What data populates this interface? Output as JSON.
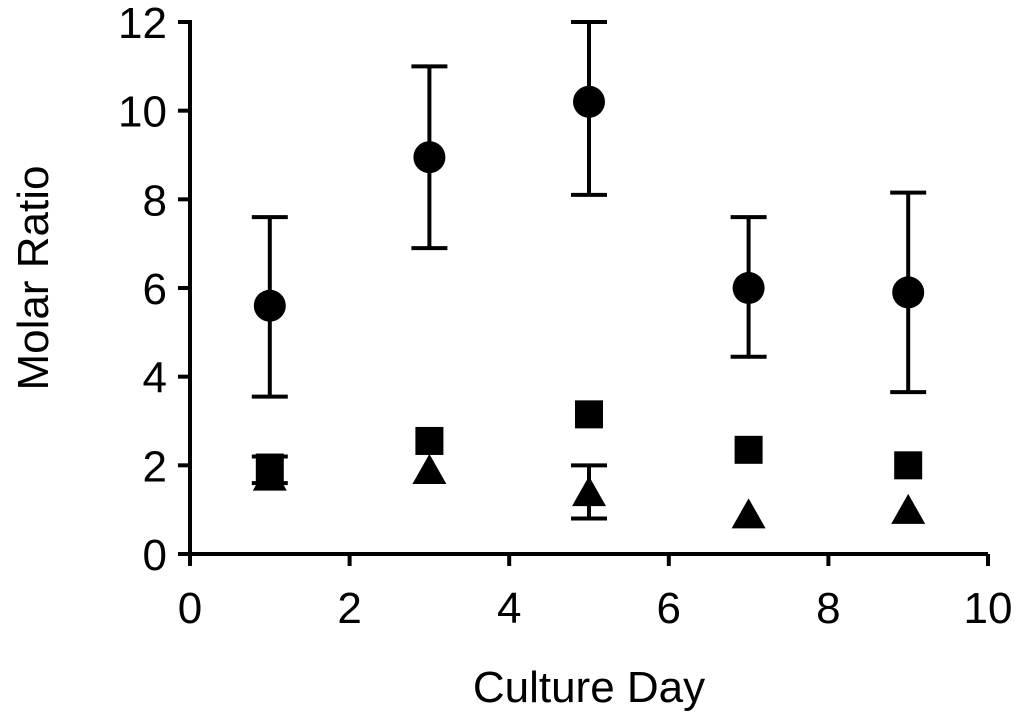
{
  "chart_data": {
    "type": "scatter",
    "title": "",
    "xlabel": "Culture Day",
    "ylabel": "Molar Ratio",
    "xlim": [
      0,
      10
    ],
    "ylim": [
      0,
      12
    ],
    "xticks": [
      0,
      2,
      4,
      6,
      8,
      10
    ],
    "yticks": [
      0,
      2,
      4,
      6,
      8,
      10,
      12
    ],
    "xtick_labels": [
      "0",
      "2",
      "4",
      "6",
      "8",
      "10"
    ],
    "ytick_labels": [
      "0",
      "2",
      "4",
      "6",
      "8",
      "10",
      "12"
    ],
    "grid": false,
    "legend": "none",
    "series": [
      {
        "marker": "circle",
        "color": "#000000",
        "points": [
          {
            "x": 1,
            "y": 5.6,
            "err_low": 3.55,
            "err_high": 7.6
          },
          {
            "x": 3,
            "y": 8.95,
            "err_low": 6.9,
            "err_high": 11.0
          },
          {
            "x": 5,
            "y": 10.2,
            "err_low": 8.1,
            "err_high": 12.0
          },
          {
            "x": 7,
            "y": 6.0,
            "err_low": 4.45,
            "err_high": 7.6
          },
          {
            "x": 9,
            "y": 5.9,
            "err_low": 3.65,
            "err_high": 8.15
          }
        ]
      },
      {
        "marker": "square",
        "color": "#000000",
        "points": [
          {
            "x": 1,
            "y": 1.95,
            "err_low": 1.6,
            "err_high": 2.2
          },
          {
            "x": 3,
            "y": 2.55
          },
          {
            "x": 5,
            "y": 3.15
          },
          {
            "x": 7,
            "y": 2.35
          },
          {
            "x": 9,
            "y": 2.0
          }
        ]
      },
      {
        "marker": "triangle",
        "color": "#000000",
        "points": [
          {
            "x": 1,
            "y": 1.7
          },
          {
            "x": 3,
            "y": 1.85
          },
          {
            "x": 5,
            "y": 1.35,
            "err_low": 0.8,
            "err_high": 2.0
          },
          {
            "x": 7,
            "y": 0.85
          },
          {
            "x": 9,
            "y": 0.95
          }
        ]
      }
    ]
  }
}
